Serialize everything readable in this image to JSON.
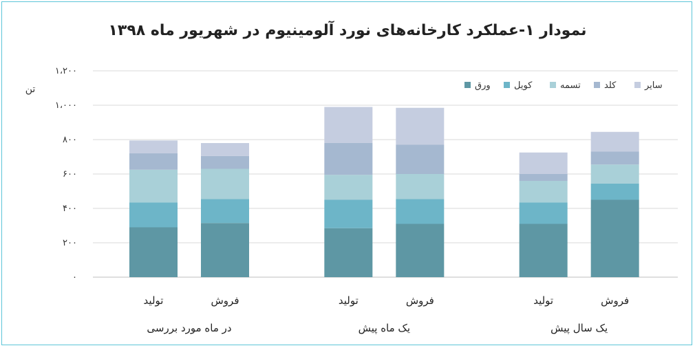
{
  "chart_data": {
    "type": "bar",
    "stacked": true,
    "title": "نمودار ۱-عملکرد کارخانه‌های نورد آلومینیوم در شهریور ماه ۱۳۹۸",
    "ylabel": "تن",
    "ylim": [
      0,
      1200
    ],
    "ytick_values": [
      0,
      200,
      400,
      600,
      800,
      1000,
      1200
    ],
    "ytick_labels": [
      "۰",
      "۲۰۰",
      "۴۰۰",
      "۶۰۰",
      "۸۰۰",
      "۱،۰۰۰",
      "۱،۲۰۰"
    ],
    "grid": true,
    "legend_position": "top-right",
    "groups": [
      {
        "label": "در ماه مورد بررسی",
        "bars": [
          {
            "label": "تولید",
            "values": [
              290,
              145,
              190,
              95,
              75
            ]
          },
          {
            "label": "فروش",
            "values": [
              315,
              140,
              175,
              75,
              75
            ]
          }
        ]
      },
      {
        "label": "یک ماه پیش",
        "bars": [
          {
            "label": "تولید",
            "values": [
              285,
              165,
              145,
              185,
              210
            ]
          },
          {
            "label": "فروش",
            "values": [
              310,
              145,
              145,
              170,
              215
            ]
          }
        ]
      },
      {
        "label": "یک سال پیش",
        "bars": [
          {
            "label": "تولید",
            "values": [
              310,
              125,
              125,
              40,
              125
            ]
          },
          {
            "label": "فروش",
            "values": [
              450,
              95,
              110,
              75,
              115
            ]
          }
        ]
      }
    ],
    "series": [
      {
        "name": "ورق",
        "color": "#5e97a4"
      },
      {
        "name": "کویل",
        "color": "#6db5c8"
      },
      {
        "name": "تسمه",
        "color": "#a9d0d8"
      },
      {
        "name": "کلد",
        "color": "#a5b8d0"
      },
      {
        "name": "سایر",
        "color": "#c5cde0"
      }
    ]
  }
}
